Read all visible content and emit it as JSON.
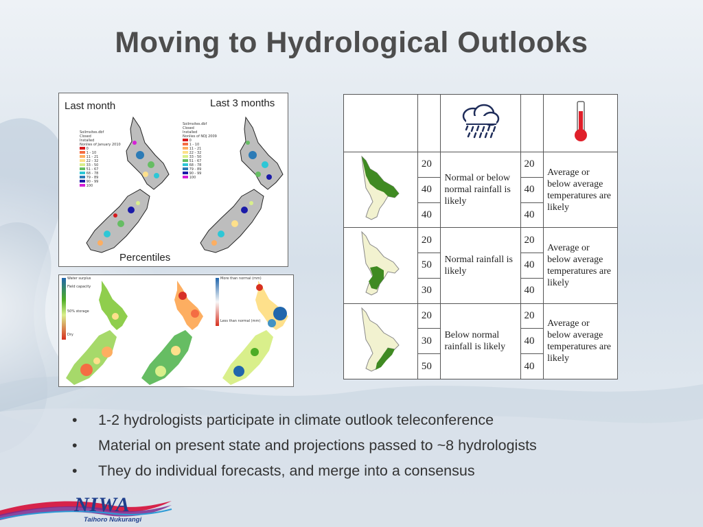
{
  "slide": {
    "title": "Moving to Hydrological Outlooks"
  },
  "percentile_panel": {
    "left_title": "Last month",
    "right_title": "Last 3 months",
    "footer": "Percentiles",
    "left_legend": [
      "Soilmsites.dbf",
      "Closed",
      "Installed",
      "Nonlies of January 2010",
      "0",
      "1 - 10",
      "11 - 21",
      "22 - 32",
      "33 - 50",
      "51 - 67",
      "68 - 78",
      "79 - 89",
      "90 - 99",
      "100"
    ],
    "right_legend": [
      "Soilmsites.dbf",
      "Closed",
      "Installed",
      "Nonlies of NDJ 2009",
      "0",
      "1 - 10",
      "11 - 21",
      "22 - 32",
      "33 - 50",
      "51 - 67",
      "68 - 78",
      "79 - 89",
      "90 - 99",
      "100"
    ]
  },
  "soil_panel": {
    "legend1": [
      "Water surplus",
      "Field capacity",
      "50% storage",
      "Dry"
    ],
    "legend3": [
      "More than normal (mm)",
      "Less than normal (mm)"
    ]
  },
  "outlook_table": {
    "rows": [
      {
        "rain_probs": [
          "20",
          "40",
          "40"
        ],
        "rain_text": "Normal or below normal rainfall is likely",
        "temp_probs": [
          "20",
          "40",
          "40"
        ],
        "temp_text": "Average or below average temperatures are  likely"
      },
      {
        "rain_probs": [
          "20",
          "50",
          "30"
        ],
        "rain_text": "Normal rainfall is likely",
        "temp_probs": [
          "20",
          "40",
          "40"
        ],
        "temp_text": "Average or below average temperatures are  likely"
      },
      {
        "rain_probs": [
          "20",
          "30",
          "50"
        ],
        "rain_text": "Below normal rainfall is likely",
        "temp_probs": [
          "20",
          "40",
          "40"
        ],
        "temp_text": "Average or below average temperatures are likely"
      }
    ]
  },
  "bullets": [
    "1-2 hydrologists participate in climate outlook teleconference",
    "Material on present state and projections passed to ~8 hydrologists",
    "They do individual forecasts, and merge into a consensus"
  ],
  "bullet_marker": "•",
  "logo": {
    "name": "NIWA",
    "subtitle": "Taihoro Nukurangi"
  },
  "colors": {
    "title": "#4d4d4d",
    "logo_blue": "#1e3f8c",
    "region_green": "#3f8a22",
    "region_pale": "#f2f2d0",
    "thermometer_red": "#e01f2a"
  }
}
